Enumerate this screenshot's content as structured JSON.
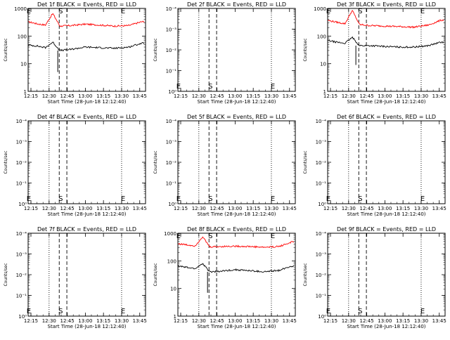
{
  "chart_data": [
    {
      "type": "line",
      "title": "Det 1f BLACK = Events, RED = LLD",
      "xlabel": "Start Time (28-Jun-18 12:12:40)",
      "ylabel": "Counts/sec",
      "x_ticks": [
        "12:15",
        "12:30",
        "12:45",
        "13:00",
        "13:15",
        "13:30",
        "13:45"
      ],
      "y_scale": "log",
      "y_ticks": [
        "1",
        "10",
        "100",
        "1000"
      ],
      "markers": [
        "E",
        "S",
        "E"
      ],
      "series": [
        {
          "color": "#ff0000",
          "points": [
            [
              12.21,
              330
            ],
            [
              12.33,
              280
            ],
            [
              12.45,
              250
            ],
            [
              12.55,
              660
            ],
            [
              12.65,
              230
            ],
            [
              12.8,
              240
            ],
            [
              13.0,
              270
            ],
            [
              13.2,
              250
            ],
            [
              13.4,
              230
            ],
            [
              13.6,
              240
            ],
            [
              13.72,
              300
            ],
            [
              13.78,
              330
            ]
          ],
          "spikes": []
        },
        {
          "color": "#000000",
          "points": [
            [
              12.21,
              47
            ],
            [
              12.33,
              44
            ],
            [
              12.45,
              38
            ],
            [
              12.55,
              60
            ],
            [
              12.65,
              30
            ],
            [
              12.8,
              33
            ],
            [
              13.0,
              40
            ],
            [
              13.2,
              38
            ],
            [
              13.4,
              36
            ],
            [
              13.6,
              40
            ],
            [
              13.72,
              50
            ],
            [
              13.78,
              55
            ]
          ],
          "spikes": [
            [
              12.62,
              5
            ]
          ]
        }
      ]
    },
    {
      "type": "line",
      "title": "Det 2f BLACK = Events, RED = LLD",
      "xlabel": "Start Time (28-Jun-18 12:12:40)",
      "ylabel": "Counts/sec",
      "x_ticks": [
        "12:15",
        "12:30",
        "12:45",
        "13:00",
        "13:15",
        "13:30",
        "13:45"
      ],
      "y_scale": "log",
      "y_ticks": [
        "10⁰",
        "10⁻¹",
        "10⁻²",
        "10⁻³",
        "10⁻⁴"
      ],
      "markers": [
        "E",
        "S",
        "E"
      ],
      "series": []
    },
    {
      "type": "line",
      "title": "Det 3f BLACK = Events, RED = LLD",
      "xlabel": "Start Time (28-Jun-18 12:12:40)",
      "ylabel": "Counts/sec",
      "x_ticks": [
        "12:15",
        "12:30",
        "12:45",
        "13:00",
        "13:15",
        "13:30",
        "13:45"
      ],
      "y_scale": "log",
      "y_ticks": [
        "1",
        "10",
        "100",
        "1000"
      ],
      "markers": [
        "E",
        "S",
        "E"
      ],
      "series": [
        {
          "color": "#ff0000",
          "points": [
            [
              12.21,
              370
            ],
            [
              12.33,
              320
            ],
            [
              12.45,
              280
            ],
            [
              12.55,
              850
            ],
            [
              12.65,
              260
            ],
            [
              12.8,
              240
            ],
            [
              13.0,
              230
            ],
            [
              13.2,
              220
            ],
            [
              13.4,
              210
            ],
            [
              13.6,
              250
            ],
            [
              13.72,
              330
            ],
            [
              13.78,
              380
            ]
          ],
          "spikes": []
        },
        {
          "color": "#000000",
          "points": [
            [
              12.21,
              70
            ],
            [
              12.33,
              60
            ],
            [
              12.45,
              55
            ],
            [
              12.55,
              90
            ],
            [
              12.65,
              45
            ],
            [
              12.8,
              45
            ],
            [
              13.0,
              42
            ],
            [
              13.2,
              40
            ],
            [
              13.4,
              40
            ],
            [
              13.6,
              45
            ],
            [
              13.72,
              55
            ],
            [
              13.78,
              60
            ]
          ],
          "spikes": [
            [
              12.6,
              9
            ]
          ]
        }
      ]
    },
    {
      "type": "line",
      "title": "Det 4f BLACK = Events, RED = LLD",
      "xlabel": "Start Time (28-Jun-18 12:12:40)",
      "ylabel": "Counts/sec",
      "x_ticks": [
        "12:15",
        "12:30",
        "12:45",
        "13:00",
        "13:15",
        "13:30",
        "13:45"
      ],
      "y_scale": "log",
      "y_ticks": [
        "10⁰",
        "10⁻¹",
        "10⁻²",
        "10⁻³",
        "10⁻⁴"
      ],
      "markers": [
        "E",
        "S",
        "E"
      ],
      "series": []
    },
    {
      "type": "line",
      "title": "Det 5f BLACK = Events, RED = LLD",
      "xlabel": "Start Time (28-Jun-18 12:12:40)",
      "ylabel": "Counts/sec",
      "x_ticks": [
        "12:15",
        "12:30",
        "12:45",
        "13:00",
        "13:15",
        "13:30",
        "13:45"
      ],
      "y_scale": "log",
      "y_ticks": [
        "10⁰",
        "10⁻¹",
        "10⁻²",
        "10⁻³",
        "10⁻⁴"
      ],
      "markers": [
        "E",
        "S",
        "E"
      ],
      "series": []
    },
    {
      "type": "line",
      "title": "Det 6f BLACK = Events, RED = LLD",
      "xlabel": "Start Time (28-Jun-18 12:12:40)",
      "ylabel": "Counts/sec",
      "x_ticks": [
        "12:15",
        "12:30",
        "12:45",
        "13:00",
        "13:15",
        "13:30",
        "13:45"
      ],
      "y_scale": "log",
      "y_ticks": [
        "10⁰",
        "10⁻¹",
        "10⁻²",
        "10⁻³",
        "10⁻⁴"
      ],
      "markers": [
        "E",
        "S",
        "E"
      ],
      "series": []
    },
    {
      "type": "line",
      "title": "Det 7f BLACK = Events, RED = LLD",
      "xlabel": "Start Time (28-Jun-18 12:12:40)",
      "ylabel": "Counts/sec",
      "x_ticks": [
        "12:15",
        "12:30",
        "12:45",
        "13:00",
        "13:15",
        "13:30",
        "13:45"
      ],
      "y_scale": "log",
      "y_ticks": [
        "10⁰",
        "10⁻¹",
        "10⁻²",
        "10⁻³",
        "10⁻⁴"
      ],
      "markers": [
        "E",
        "S",
        "E"
      ],
      "series": []
    },
    {
      "type": "line",
      "title": "Det 8f BLACK = Events, RED = LLD",
      "xlabel": "Start Time (28-Jun-18 12:12:40)",
      "ylabel": "Counts/sec",
      "x_ticks": [
        "12:15",
        "12:30",
        "12:45",
        "13:00",
        "13:15",
        "13:30",
        "13:45"
      ],
      "y_scale": "log",
      "y_ticks": [
        "1",
        "10",
        "100",
        "1000"
      ],
      "markers": [
        "E",
        "S",
        "E"
      ],
      "series": [
        {
          "color": "#ff0000",
          "points": [
            [
              12.21,
              420
            ],
            [
              12.33,
              380
            ],
            [
              12.45,
              350
            ],
            [
              12.55,
              750
            ],
            [
              12.65,
              320
            ],
            [
              12.8,
              330
            ],
            [
              13.0,
              340
            ],
            [
              13.2,
              330
            ],
            [
              13.4,
              310
            ],
            [
              13.6,
              330
            ],
            [
              13.72,
              420
            ],
            [
              13.78,
              480
            ]
          ],
          "spikes": []
        },
        {
          "color": "#000000",
          "points": [
            [
              12.21,
              65
            ],
            [
              12.33,
              58
            ],
            [
              12.45,
              52
            ],
            [
              12.55,
              80
            ],
            [
              12.65,
              40
            ],
            [
              12.8,
              42
            ],
            [
              13.0,
              48
            ],
            [
              13.2,
              44
            ],
            [
              13.4,
              40
            ],
            [
              13.6,
              45
            ],
            [
              13.72,
              58
            ],
            [
              13.78,
              65
            ]
          ],
          "spikes": [
            [
              12.62,
              7
            ]
          ]
        }
      ]
    },
    {
      "type": "line",
      "title": "Det 9f BLACK = Events, RED = LLD",
      "xlabel": "Start Time (28-Jun-18 12:12:40)",
      "ylabel": "Counts/sec",
      "x_ticks": [
        "12:15",
        "12:30",
        "12:45",
        "13:00",
        "13:15",
        "13:30",
        "13:45"
      ],
      "y_scale": "log",
      "y_ticks": [
        "10⁰",
        "10⁻¹",
        "10⁻²",
        "10⁻³",
        "10⁻⁴"
      ],
      "markers": [
        "E",
        "S",
        "E"
      ],
      "series": []
    }
  ]
}
